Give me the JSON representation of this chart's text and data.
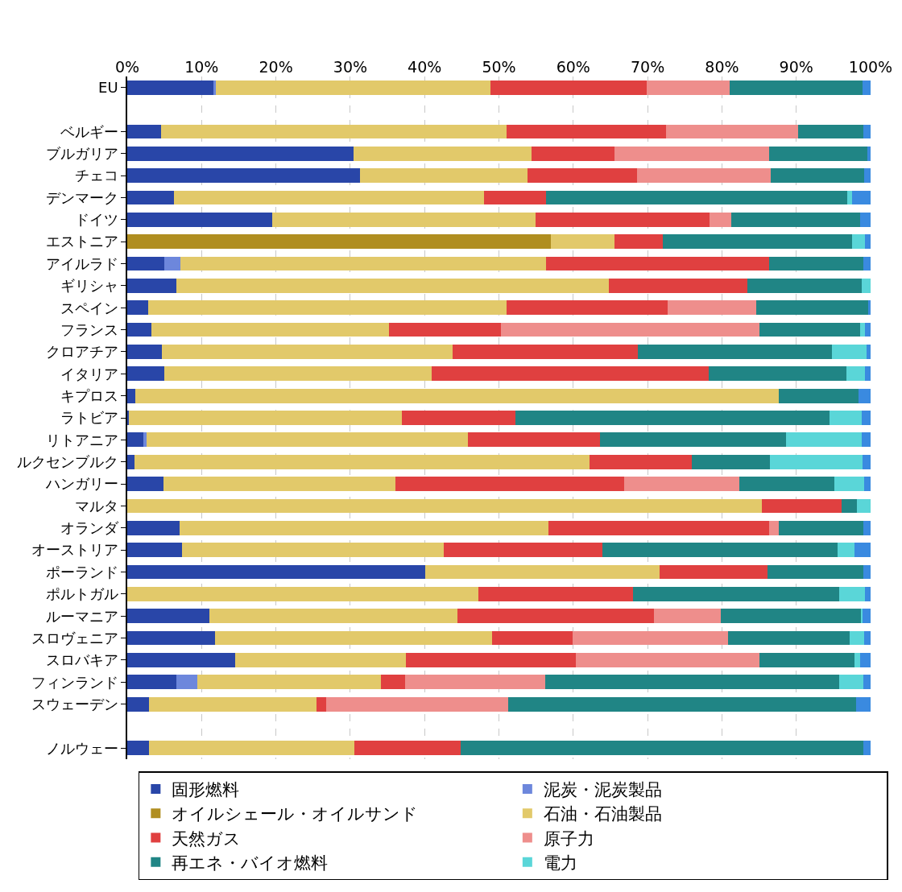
{
  "chart_data": {
    "type": "bar",
    "orientation": "horizontal",
    "stacked": true,
    "categories": [
      "EU",
      null,
      "ベルギー",
      "ブルガリア",
      "チェコ",
      "デンマーク",
      "ドイツ",
      "エストニア",
      "アイルラド",
      "ギリシャ",
      "スペイン",
      "フランス",
      "クロアチア",
      "イタリア",
      "キプロス",
      "ラトビア",
      "リトアニア",
      "ルクセンブルク",
      "ハンガリー",
      "マルタ",
      "オランダ",
      "オーストリア",
      "ポーランド",
      "ポルトガル",
      "ルーマニア",
      "スロヴェニア",
      "スロバキア",
      "フィンランド",
      "スウェーデン",
      null,
      "ノルウェー"
    ],
    "series": [
      {
        "name": "固形燃料",
        "color": "#2946a8",
        "values": [
          11.7,
          null,
          4.6,
          30.4,
          31.3,
          6.3,
          19.5,
          0,
          5.0,
          6.6,
          2.8,
          3.3,
          4.7,
          5.0,
          1.1,
          0.2,
          2.2,
          1.0,
          4.9,
          0,
          7.0,
          7.4,
          40.1,
          0,
          11.1,
          11.8,
          14.5,
          6.6,
          2.9,
          null,
          2.9
        ]
      },
      {
        "name": "泥炭・泥炭製品",
        "color": "#6d87dc",
        "values": [
          0.2,
          null,
          0,
          0,
          0,
          0,
          0,
          0,
          2.2,
          0,
          0,
          0,
          0,
          0,
          0,
          0,
          0.4,
          0,
          0,
          0,
          0,
          0,
          0,
          0,
          0,
          0,
          0,
          2.8,
          0,
          null,
          0
        ]
      },
      {
        "name": "オイルシェール・オイルサンド",
        "color": "#b08e20",
        "values": [
          0,
          null,
          0,
          0,
          0,
          0,
          0,
          57.0,
          0,
          0,
          0,
          0,
          0,
          0,
          0,
          0,
          0,
          0,
          0,
          0,
          0,
          0,
          0,
          0,
          0,
          0,
          0,
          0,
          0,
          null,
          0
        ]
      },
      {
        "name": "石油・石油製品",
        "color": "#e2c96a",
        "values": [
          37.0,
          null,
          46.4,
          24.0,
          22.5,
          41.7,
          35.4,
          8.5,
          49.1,
          58.2,
          48.2,
          31.9,
          39.1,
          35.9,
          86.6,
          36.7,
          43.2,
          61.2,
          31.2,
          85.4,
          49.7,
          35.2,
          31.5,
          47.2,
          33.3,
          37.3,
          23.0,
          24.7,
          22.6,
          null,
          27.6
        ]
      },
      {
        "name": "天然ガス",
        "color": "#e04040",
        "values": [
          21.0,
          null,
          21.5,
          11.1,
          14.8,
          8.3,
          23.4,
          6.6,
          30.1,
          18.6,
          21.7,
          15.1,
          24.9,
          37.3,
          0,
          15.3,
          17.8,
          13.7,
          30.7,
          10.7,
          29.6,
          21.3,
          14.5,
          20.8,
          26.5,
          10.8,
          22.9,
          3.3,
          1.3,
          null,
          14.4
        ]
      },
      {
        "name": "原子力",
        "color": "#ee8e8c",
        "values": [
          11.1,
          null,
          17.8,
          20.8,
          18.0,
          0,
          3.0,
          0,
          0,
          0,
          11.9,
          34.8,
          0,
          0,
          0,
          0,
          0,
          0,
          15.5,
          0,
          1.3,
          0,
          0,
          0,
          8.9,
          20.9,
          24.6,
          18.8,
          24.4,
          null,
          0
        ]
      },
      {
        "name": "再エネ・バイオ燃料",
        "color": "#208585",
        "values": [
          17.9,
          null,
          8.7,
          13.3,
          12.5,
          40.6,
          17.3,
          25.4,
          12.6,
          15.4,
          15.1,
          13.5,
          26.1,
          18.6,
          10.7,
          42.3,
          25.0,
          10.6,
          12.8,
          2.1,
          11.4,
          31.7,
          12.9,
          27.8,
          18.9,
          16.4,
          12.8,
          39.6,
          46.9,
          null,
          54.1
        ]
      },
      {
        "name": "電力",
        "color": "#5ad6d8",
        "values": [
          0,
          null,
          0,
          0,
          0,
          0.6,
          0,
          1.7,
          0,
          1.2,
          0,
          0.6,
          4.7,
          2.4,
          0,
          4.3,
          10.2,
          12.4,
          4.0,
          1.8,
          0,
          2.2,
          0,
          3.4,
          0.2,
          1.9,
          0.8,
          3.2,
          0,
          null,
          0
        ]
      },
      {
        "color": "#3a8ae0",
        "values": [
          1.1,
          null,
          1.0,
          0.4,
          0.9,
          2.5,
          1.4,
          0.8,
          1.0,
          0,
          0.3,
          0.8,
          0.5,
          0.8,
          1.6,
          1.2,
          1.2,
          1.1,
          0.9,
          0,
          1.0,
          2.2,
          1.0,
          0.8,
          1.1,
          0.9,
          1.4,
          1.0,
          1.9,
          null,
          1.0
        ]
      }
    ],
    "xlim": [
      0,
      100
    ],
    "xticks": [
      {
        "value": 0,
        "label": "0%"
      },
      {
        "value": 10,
        "label": "10%"
      },
      {
        "value": 20,
        "label": "20%"
      },
      {
        "value": 30,
        "label": "30%"
      },
      {
        "value": 40,
        "label": "40%"
      },
      {
        "value": 50,
        "label": "50%"
      },
      {
        "value": 60,
        "label": "60%"
      },
      {
        "value": 70,
        "label": "70%"
      },
      {
        "value": 80,
        "label": "80%"
      },
      {
        "value": 90,
        "label": "90%"
      },
      {
        "value": 100,
        "label": "100%"
      }
    ],
    "grid": "x",
    "legend": "bottom"
  }
}
